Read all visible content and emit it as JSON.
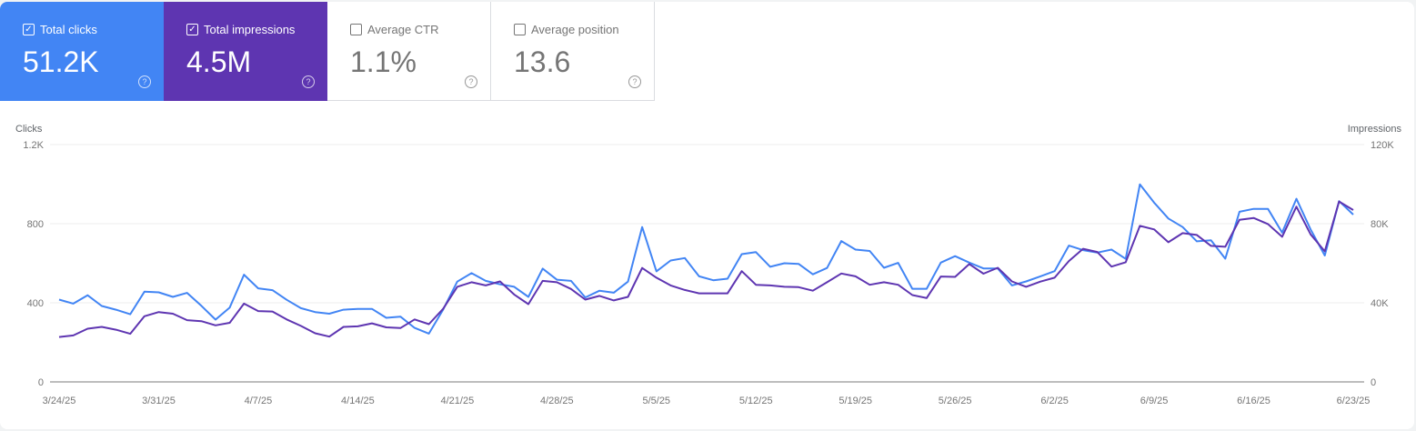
{
  "cards": [
    {
      "label": "Total clicks",
      "value": "51.2K",
      "checked": true,
      "color": "#4285f4"
    },
    {
      "label": "Total impressions",
      "value": "4.5M",
      "checked": true,
      "color": "#5e35b1"
    },
    {
      "label": "Average CTR",
      "value": "1.1%",
      "checked": false
    },
    {
      "label": "Average position",
      "value": "13.6",
      "checked": false
    }
  ],
  "help_icon": "?",
  "check_icon": "✓",
  "chart_data": {
    "type": "line",
    "left_axis_label": "Clicks",
    "right_axis_label": "Impressions",
    "left_ticks": [
      "0",
      "400",
      "800",
      "1.2K"
    ],
    "right_ticks": [
      "0",
      "40K",
      "80K",
      "120K"
    ],
    "left_ylim": [
      0,
      1200
    ],
    "right_ylim": [
      0,
      120000
    ],
    "grid": true,
    "x_tick_labels": [
      "3/24/25",
      "3/31/25",
      "4/7/25",
      "4/14/25",
      "4/21/25",
      "4/28/25",
      "5/5/25",
      "5/12/25",
      "5/19/25",
      "5/26/25",
      "6/2/25",
      "6/9/25",
      "6/16/25",
      "6/23/25"
    ],
    "x": [
      "3/24/25",
      "3/25/25",
      "3/26/25",
      "3/27/25",
      "3/28/25",
      "3/29/25",
      "3/30/25",
      "3/31/25",
      "4/1/25",
      "4/2/25",
      "4/3/25",
      "4/4/25",
      "4/5/25",
      "4/6/25",
      "4/7/25",
      "4/8/25",
      "4/9/25",
      "4/10/25",
      "4/11/25",
      "4/12/25",
      "4/13/25",
      "4/14/25",
      "4/15/25",
      "4/16/25",
      "4/17/25",
      "4/18/25",
      "4/19/25",
      "4/20/25",
      "4/21/25",
      "4/22/25",
      "4/23/25",
      "4/24/25",
      "4/25/25",
      "4/26/25",
      "4/27/25",
      "4/28/25",
      "4/29/25",
      "4/30/25",
      "5/1/25",
      "5/2/25",
      "5/3/25",
      "5/4/25",
      "5/5/25",
      "5/6/25",
      "5/7/25",
      "5/8/25",
      "5/9/25",
      "5/10/25",
      "5/11/25",
      "5/12/25",
      "5/13/25",
      "5/14/25",
      "5/15/25",
      "5/16/25",
      "5/17/25",
      "5/18/25",
      "5/19/25",
      "5/20/25",
      "5/21/25",
      "5/22/25",
      "5/23/25",
      "5/24/25",
      "5/25/25",
      "5/26/25",
      "5/27/25",
      "5/28/25",
      "5/29/25",
      "5/30/25",
      "5/31/25",
      "6/1/25",
      "6/2/25",
      "6/3/25",
      "6/4/25",
      "6/5/25",
      "6/6/25",
      "6/7/25",
      "6/8/25",
      "6/9/25",
      "6/10/25",
      "6/11/25",
      "6/12/25",
      "6/13/25",
      "6/14/25",
      "6/15/25",
      "6/16/25",
      "6/17/25",
      "6/18/25",
      "6/19/25",
      "6/20/25",
      "6/21/25",
      "6/22/25",
      "6/23/25"
    ],
    "series": [
      {
        "name": "Clicks",
        "axis": "left",
        "color": "#4285f4",
        "values": [
          416,
          396,
          438,
          384,
          365,
          342,
          456,
          453,
          430,
          450,
          385,
          315,
          376,
          542,
          473,
          464,
          415,
          373,
          353,
          345,
          365,
          369,
          369,
          324,
          330,
          273,
          244,
          365,
          507,
          550,
          511,
          494,
          481,
          430,
          573,
          517,
          511,
          427,
          461,
          451,
          507,
          783,
          559,
          614,
          626,
          534,
          514,
          522,
          646,
          656,
          582,
          600,
          597,
          544,
          576,
          712,
          669,
          662,
          577,
          602,
          471,
          471,
          603,
          636,
          603,
          574,
          574,
          488,
          508,
          534,
          560,
          689,
          666,
          654,
          669,
          622,
          999,
          906,
          826,
          783,
          711,
          716,
          623,
          860,
          875,
          875,
          755,
          926,
          771,
          639,
          914,
          846
        ]
      },
      {
        "name": "Impressions",
        "axis": "right",
        "color": "#5e35b1",
        "values": [
          22700,
          23500,
          26900,
          27800,
          26400,
          24300,
          33200,
          35300,
          34500,
          31200,
          30700,
          28600,
          29900,
          39600,
          35800,
          35600,
          31600,
          28300,
          24600,
          22900,
          27800,
          28100,
          29600,
          27600,
          27200,
          31600,
          29200,
          36900,
          48100,
          50400,
          48800,
          50800,
          44200,
          39300,
          51100,
          50400,
          47000,
          41600,
          43500,
          41200,
          43000,
          57600,
          52700,
          48800,
          46500,
          44800,
          44800,
          44800,
          56000,
          49100,
          48800,
          48100,
          47900,
          46100,
          50400,
          54800,
          53400,
          49100,
          50400,
          49100,
          43900,
          42400,
          53300,
          53100,
          59600,
          54700,
          57700,
          50800,
          48100,
          50700,
          52700,
          61100,
          67300,
          65700,
          58300,
          60500,
          78900,
          77100,
          70600,
          75200,
          74300,
          68800,
          68300,
          82000,
          82900,
          79800,
          73400,
          88600,
          74600,
          66000,
          91200,
          86900
        ]
      }
    ]
  }
}
